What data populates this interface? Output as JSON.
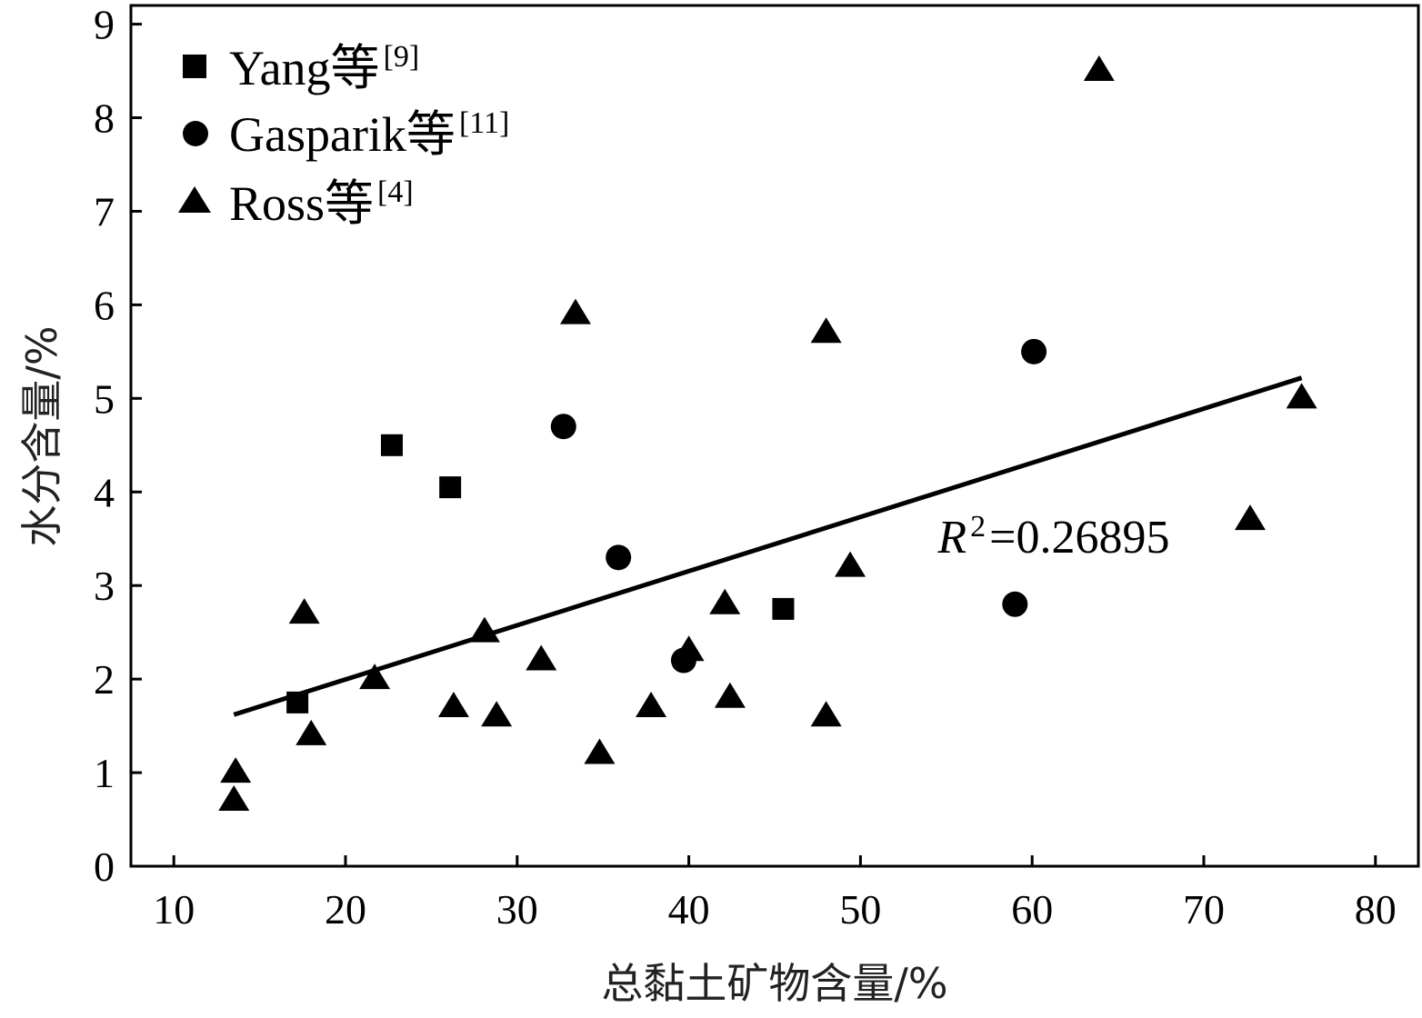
{
  "chart_data": {
    "type": "scatter",
    "xlabel": "总黏土矿物含量/%",
    "ylabel": "水分含量/%",
    "xlim": [
      7.5,
      82.5
    ],
    "ylim": [
      0,
      9.2
    ],
    "x_ticks": [
      10,
      20,
      30,
      40,
      50,
      60,
      70,
      80
    ],
    "y_ticks": [
      0,
      1,
      2,
      3,
      4,
      5,
      6,
      7,
      8,
      9
    ],
    "grid": false,
    "legend_position": "top-left",
    "series": [
      {
        "name": "Yang等",
        "ref": "[9]",
        "marker": "square",
        "points": [
          [
            17.2,
            1.75
          ],
          [
            22.7,
            4.5
          ],
          [
            26.1,
            4.05
          ],
          [
            45.5,
            2.75
          ]
        ]
      },
      {
        "name": "Gasparik等",
        "ref": "[11]",
        "marker": "circle",
        "points": [
          [
            32.7,
            4.7
          ],
          [
            35.9,
            3.3
          ],
          [
            39.7,
            2.2
          ],
          [
            59.0,
            2.8
          ],
          [
            60.1,
            5.5
          ]
        ]
      },
      {
        "name": "Ross等",
        "ref": "[4]",
        "marker": "triangle",
        "points": [
          [
            13.5,
            0.7
          ],
          [
            13.6,
            1.0
          ],
          [
            17.6,
            2.7
          ],
          [
            18.0,
            1.4
          ],
          [
            21.7,
            2.0
          ],
          [
            26.3,
            1.7
          ],
          [
            28.1,
            2.5
          ],
          [
            28.8,
            1.6
          ],
          [
            31.4,
            2.2
          ],
          [
            33.4,
            5.9
          ],
          [
            34.8,
            1.2
          ],
          [
            37.8,
            1.7
          ],
          [
            40.0,
            2.3
          ],
          [
            42.1,
            2.8
          ],
          [
            42.4,
            1.8
          ],
          [
            48.0,
            5.7
          ],
          [
            48.0,
            1.6
          ],
          [
            49.4,
            3.2
          ],
          [
            63.9,
            8.5
          ],
          [
            72.7,
            3.7
          ],
          [
            75.7,
            5.0
          ]
        ]
      }
    ],
    "trendline": {
      "x": [
        13.5,
        75.7
      ],
      "y": [
        1.62,
        5.22
      ],
      "label_prefix": "R",
      "label_sup": "2",
      "label_value": "=0.26895",
      "label_anchor": [
        54.5,
        3.35
      ]
    }
  }
}
